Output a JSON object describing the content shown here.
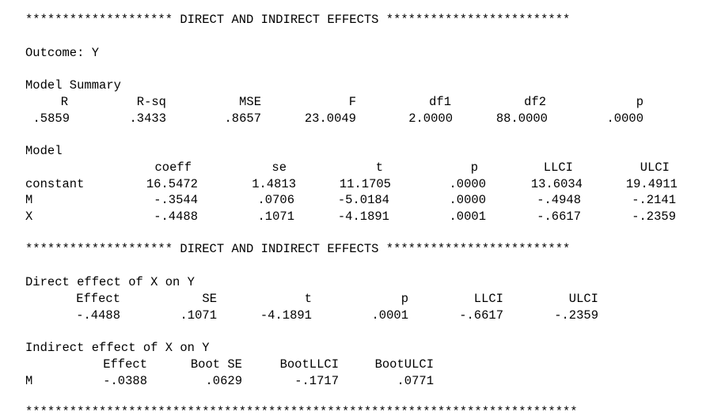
{
  "banner_top": "******************** DIRECT AND INDIRECT EFFECTS *************************",
  "outcome": "Outcome: Y",
  "model_summary": {
    "title": "Model Summary",
    "headers": [
      "R",
      "R-sq",
      "MSE",
      "F",
      "df1",
      "df2",
      "p"
    ],
    "values": [
      ".5859",
      ".3433",
      ".8657",
      "23.0049",
      "2.0000",
      "88.0000",
      ".0000"
    ]
  },
  "model": {
    "title": "Model",
    "headers": [
      "coeff",
      "se",
      "t",
      "p",
      "LLCI",
      "ULCI"
    ],
    "rows": [
      {
        "label": "constant",
        "values": [
          "16.5472",
          "1.4813",
          "11.1705",
          ".0000",
          "13.6034",
          "19.4911"
        ]
      },
      {
        "label": "M",
        "values": [
          "-.3544",
          ".0706",
          "-5.0184",
          ".0000",
          "-.4948",
          "-.2141"
        ]
      },
      {
        "label": "X",
        "values": [
          "-.4488",
          ".1071",
          "-4.1891",
          ".0001",
          "-.6617",
          "-.2359"
        ]
      }
    ]
  },
  "banner_mid": "******************** DIRECT AND INDIRECT EFFECTS *************************",
  "direct": {
    "title": "Direct effect of X on Y",
    "headers": [
      "Effect",
      "SE",
      "t",
      "p",
      "LLCI",
      "ULCI"
    ],
    "values": [
      "-.4488",
      ".1071",
      "-4.1891",
      ".0001",
      "-.6617",
      "-.2359"
    ]
  },
  "indirect": {
    "title": "Indirect effect of X on Y",
    "headers": [
      "Effect",
      "Boot SE",
      "BootLLCI",
      "BootULCI"
    ],
    "row_label": "M",
    "values": [
      "-.0388",
      ".0629",
      "-.1717",
      ".0771"
    ]
  },
  "banner_bottom": "***************************************************************************"
}
